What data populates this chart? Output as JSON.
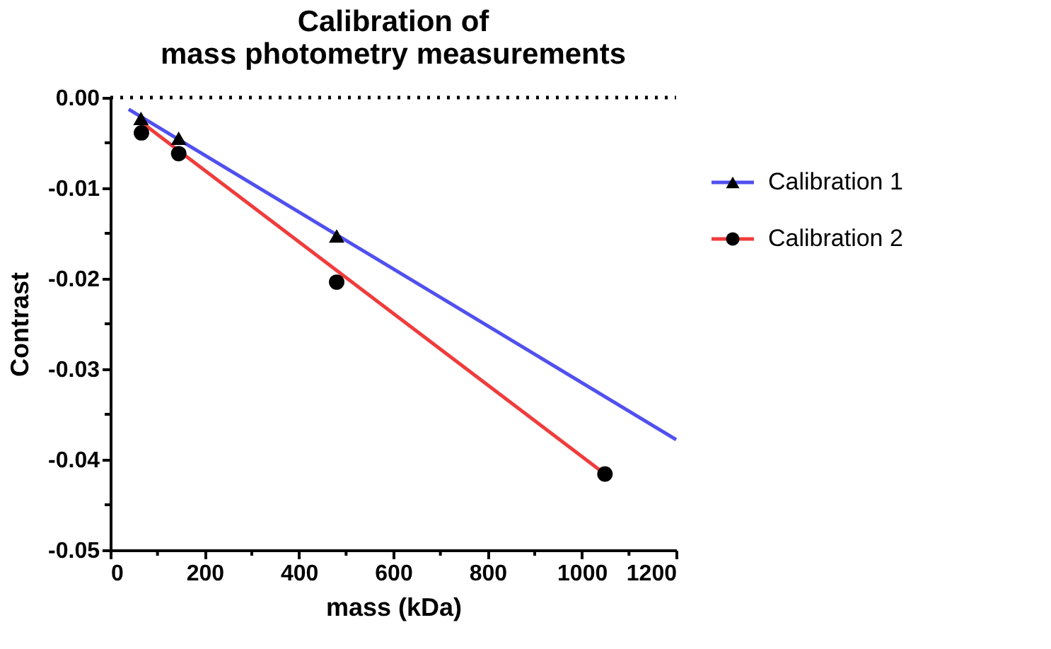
{
  "chart_data": {
    "type": "scatter",
    "title": [
      "Calibration of",
      "mass photometry measurements"
    ],
    "xlabel": "mass (kDa)",
    "ylabel": "Contrast",
    "series": [
      {
        "name": "Calibration 1",
        "type": "line",
        "color": "#5050f0",
        "x": [
          39,
          1200
        ],
        "values": [
          -0.0013,
          -0.0378
        ]
      },
      {
        "name": "Calibration 2",
        "type": "line",
        "color": "#f03c3c",
        "x": [
          65,
          1049
        ],
        "values": [
          -0.0027,
          -0.0416
        ]
      },
      {
        "color": "#000000",
        "marker": "triangle",
        "x": [
          65,
          145,
          480
        ],
        "values": [
          -0.0023,
          -0.0045,
          -0.0153
        ]
      },
      {
        "color": "#000000",
        "marker": "circle",
        "x": [
          66,
          145,
          480,
          1049
        ],
        "values": [
          -0.0039,
          -0.0062,
          -0.0204,
          -0.0416
        ]
      }
    ],
    "xlim": [
      0,
      1200
    ],
    "xticks": [
      0,
      {
        "value": 100,
        "label": null
      },
      200,
      {
        "value": 300,
        "label": null
      },
      400,
      {
        "value": 500,
        "label": null
      },
      600,
      {
        "value": 700,
        "label": null
      },
      800,
      {
        "value": 900,
        "label": null
      },
      1000,
      {
        "value": 1100,
        "label": null
      },
      1200
    ],
    "ylim": [
      -0.05,
      0
    ],
    "yticks": [
      {
        "value": 0,
        "label": "0.00"
      },
      {
        "value": -0.005,
        "label": null
      },
      {
        "value": -0.01,
        "label": "-0.01"
      },
      {
        "value": -0.015,
        "label": null
      },
      {
        "value": -0.02,
        "label": "-0.02"
      },
      {
        "value": -0.025,
        "label": null
      },
      {
        "value": -0.03,
        "label": "-0.03"
      },
      {
        "value": -0.035,
        "label": null
      },
      {
        "value": -0.04,
        "label": "-0.04"
      },
      {
        "value": -0.045,
        "label": null
      },
      {
        "value": -0.05,
        "label": "-0.05"
      }
    ],
    "ref_lines": [
      {
        "axis": "y",
        "value": 0,
        "line_style": "dotted",
        "color": "#000000"
      }
    ],
    "legend": "right",
    "grid": false
  }
}
